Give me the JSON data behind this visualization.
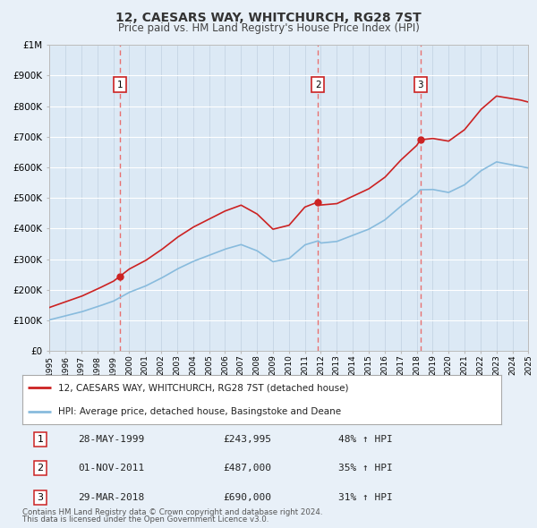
{
  "title": "12, CAESARS WAY, WHITCHURCH, RG28 7ST",
  "subtitle": "Price paid vs. HM Land Registry's House Price Index (HPI)",
  "background_color": "#e8f0f8",
  "plot_bg_color": "#dce9f5",
  "red_line_color": "#cc2222",
  "blue_line_color": "#88bbdd",
  "grid_color": "#c8d8e8",
  "vline_color": "#e87070",
  "ylim": [
    0,
    1000000
  ],
  "yticks": [
    0,
    100000,
    200000,
    300000,
    400000,
    500000,
    600000,
    700000,
    800000,
    900000,
    1000000
  ],
  "ytick_labels": [
    "£0",
    "£100K",
    "£200K",
    "£300K",
    "£400K",
    "£500K",
    "£600K",
    "£700K",
    "£800K",
    "£900K",
    "£1M"
  ],
  "sale_points": [
    {
      "label": "1",
      "date_x": 1999.4,
      "price": 243995
    },
    {
      "label": "2",
      "date_x": 2011.83,
      "price": 487000
    },
    {
      "label": "3",
      "date_x": 2018.23,
      "price": 690000
    }
  ],
  "sale_box_labels": [
    {
      "num": "1",
      "date": "28-MAY-1999",
      "price": "£243,995",
      "hpi": "48% ↑ HPI"
    },
    {
      "num": "2",
      "date": "01-NOV-2011",
      "price": "£487,000",
      "hpi": "35% ↑ HPI"
    },
    {
      "num": "3",
      "date": "29-MAR-2018",
      "price": "£690,000",
      "hpi": "31% ↑ HPI"
    }
  ],
  "legend_label_red": "12, CAESARS WAY, WHITCHURCH, RG28 7ST (detached house)",
  "legend_label_blue": "HPI: Average price, detached house, Basingstoke and Deane",
  "footer1": "Contains HM Land Registry data © Crown copyright and database right 2024.",
  "footer2": "This data is licensed under the Open Government Licence v3.0.",
  "xmin": 1995,
  "xmax": 2025
}
